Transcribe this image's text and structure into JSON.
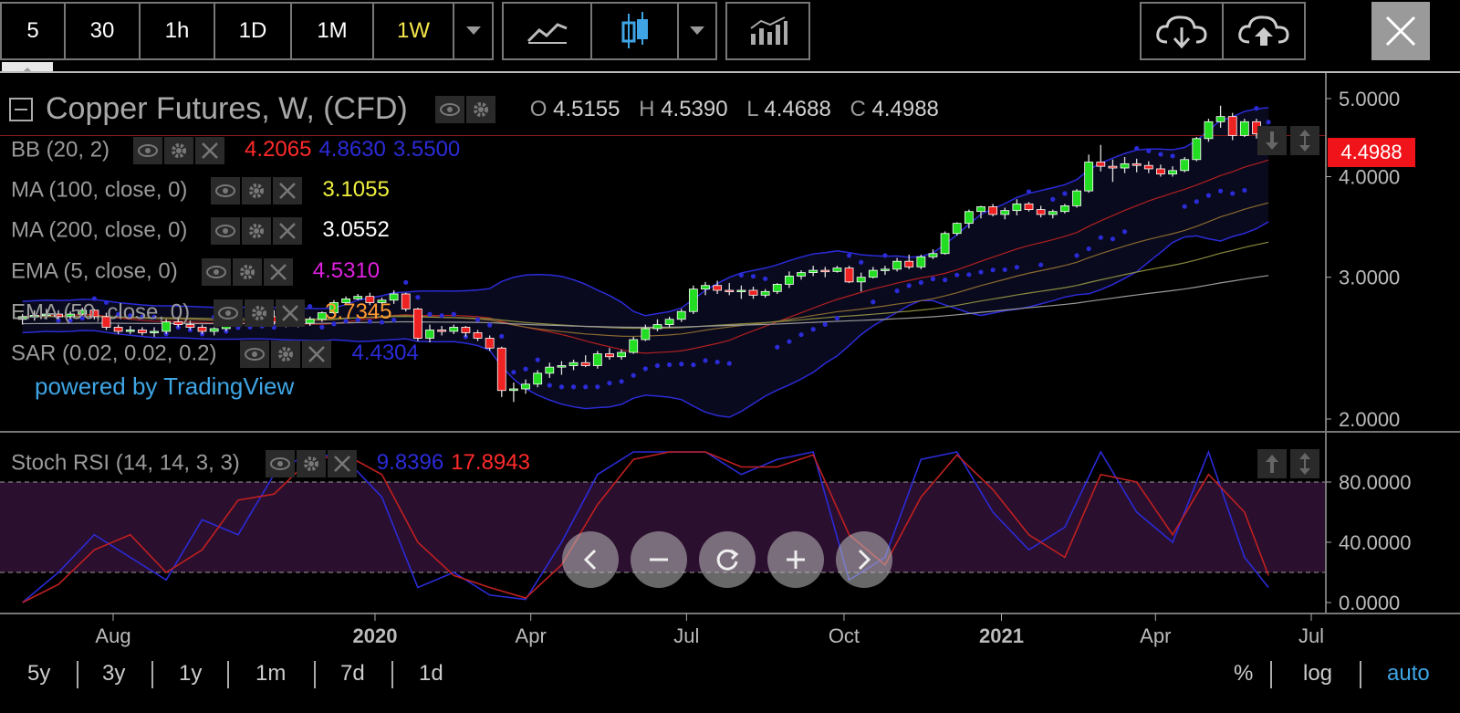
{
  "toolbar": {
    "intervals": [
      "5",
      "30",
      "1h",
      "1D",
      "1M",
      "1W"
    ],
    "active_interval": "1W",
    "active_color": "#f3e64a"
  },
  "header": {
    "symbol_title": "Copper Futures, W, (CFD)",
    "ohlc": {
      "o_label": "O",
      "o": "4.5155",
      "h_label": "H",
      "h": "4.5390",
      "l_label": "L",
      "l": "4.4688",
      "c_label": "C",
      "c": "4.4988"
    }
  },
  "indicators": [
    {
      "name": "BB (20, 2)",
      "values": [
        "4.2065",
        "4.8630",
        "3.5500"
      ],
      "colors": [
        "#ff2a2a",
        "#2b2bd8",
        "#2b2bd8"
      ]
    },
    {
      "name": "MA (100, close, 0)",
      "values": [
        "3.1055"
      ],
      "colors": [
        "#f0f040"
      ]
    },
    {
      "name": "MA (200, close, 0)",
      "values": [
        "3.0552"
      ],
      "colors": [
        "#ffffff"
      ]
    },
    {
      "name": "EMA (5, close, 0)",
      "values": [
        "4.5310"
      ],
      "colors": [
        "#e020e0"
      ]
    },
    {
      "name": "EMA (50, close, 0)",
      "values": [
        "3.7345"
      ],
      "colors": [
        "#ff9a30"
      ]
    },
    {
      "name": "SAR (0.02, 0.02, 0.2)",
      "values": [
        "4.4304"
      ],
      "colors": [
        "#2b2bd8"
      ]
    }
  ],
  "stoch": {
    "name": "Stoch RSI (14, 14, 3, 3)",
    "k": "9.8396",
    "d": "17.8943",
    "k_color": "#2b2bd8",
    "d_color": "#ff2a2a"
  },
  "branding": "powered by TradingView",
  "price_tag": "4.4988",
  "ranges": [
    "5y",
    "3y",
    "1y",
    "1m",
    "7d",
    "1d"
  ],
  "scales": [
    "%",
    "log",
    "auto"
  ],
  "active_scale": "auto",
  "icons": [
    "chevron-down-icon",
    "line-chart-icon",
    "candlestick-icon",
    "indicators-icon",
    "cloud-download-icon",
    "cloud-upload-icon",
    "close-icon",
    "eye-icon",
    "gear-icon",
    "remove-icon",
    "arrow-up-icon",
    "expand-vertical-icon",
    "chevron-left-icon",
    "zoom-out-icon",
    "reset-icon",
    "zoom-in-icon",
    "chevron-right-icon"
  ],
  "chart_data": [
    {
      "type": "candlestick",
      "title": "Copper Futures, W, (CFD)",
      "y_scale": "log",
      "y_ticks": [
        "5.0000",
        "4.0000",
        "3.0000",
        "2.0000"
      ],
      "ylim": [
        1.95,
        5.1
      ],
      "x_ticks": [
        "Aug",
        "2020",
        "Apr",
        "Jul",
        "Oct",
        "2021",
        "Apr",
        "Jul"
      ],
      "x_tick_dates": [
        "2019-08-01",
        "2020-01-01",
        "2020-04-01",
        "2020-07-01",
        "2020-10-01",
        "2021-01-01",
        "2021-04-01",
        "2021-07-01"
      ],
      "candles": [
        {
          "date": "2019-06-09",
          "o": 2.66,
          "h": 2.7,
          "l": 2.62,
          "c": 2.68
        },
        {
          "date": "2019-06-16",
          "o": 2.68,
          "h": 2.73,
          "l": 2.65,
          "c": 2.69
        },
        {
          "date": "2019-06-23",
          "o": 2.69,
          "h": 2.74,
          "l": 2.66,
          "c": 2.7
        },
        {
          "date": "2019-06-30",
          "o": 2.7,
          "h": 2.73,
          "l": 2.66,
          "c": 2.68
        },
        {
          "date": "2019-07-07",
          "o": 2.68,
          "h": 2.72,
          "l": 2.66,
          "c": 2.7
        },
        {
          "date": "2019-07-14",
          "o": 2.7,
          "h": 2.75,
          "l": 2.69,
          "c": 2.73
        },
        {
          "date": "2019-07-21",
          "o": 2.73,
          "h": 2.74,
          "l": 2.66,
          "c": 2.68
        },
        {
          "date": "2019-07-28",
          "o": 2.68,
          "h": 2.71,
          "l": 2.58,
          "c": 2.6
        },
        {
          "date": "2019-08-04",
          "o": 2.6,
          "h": 2.62,
          "l": 2.55,
          "c": 2.57
        },
        {
          "date": "2019-08-11",
          "o": 2.57,
          "h": 2.61,
          "l": 2.55,
          "c": 2.58
        },
        {
          "date": "2019-08-18",
          "o": 2.58,
          "h": 2.6,
          "l": 2.54,
          "c": 2.56
        },
        {
          "date": "2019-08-25",
          "o": 2.56,
          "h": 2.6,
          "l": 2.53,
          "c": 2.57
        },
        {
          "date": "2019-09-01",
          "o": 2.57,
          "h": 2.66,
          "l": 2.55,
          "c": 2.64
        },
        {
          "date": "2019-09-08",
          "o": 2.64,
          "h": 2.68,
          "l": 2.6,
          "c": 2.62
        },
        {
          "date": "2019-09-15",
          "o": 2.62,
          "h": 2.65,
          "l": 2.58,
          "c": 2.6
        },
        {
          "date": "2019-09-22",
          "o": 2.6,
          "h": 2.62,
          "l": 2.55,
          "c": 2.57
        },
        {
          "date": "2019-09-29",
          "o": 2.57,
          "h": 2.6,
          "l": 2.54,
          "c": 2.59
        },
        {
          "date": "2019-10-06",
          "o": 2.59,
          "h": 2.66,
          "l": 2.57,
          "c": 2.64
        },
        {
          "date": "2019-10-13",
          "o": 2.64,
          "h": 2.66,
          "l": 2.61,
          "c": 2.63
        },
        {
          "date": "2019-10-20",
          "o": 2.63,
          "h": 2.68,
          "l": 2.62,
          "c": 2.66
        },
        {
          "date": "2019-10-27",
          "o": 2.66,
          "h": 2.7,
          "l": 2.64,
          "c": 2.68
        },
        {
          "date": "2019-11-03",
          "o": 2.68,
          "h": 2.73,
          "l": 2.62,
          "c": 2.64
        },
        {
          "date": "2019-11-10",
          "o": 2.64,
          "h": 2.66,
          "l": 2.6,
          "c": 2.62
        },
        {
          "date": "2019-11-17",
          "o": 2.62,
          "h": 2.66,
          "l": 2.6,
          "c": 2.63
        },
        {
          "date": "2019-11-24",
          "o": 2.63,
          "h": 2.68,
          "l": 2.61,
          "c": 2.66
        },
        {
          "date": "2019-12-01",
          "o": 2.66,
          "h": 2.72,
          "l": 2.64,
          "c": 2.71
        },
        {
          "date": "2019-12-08",
          "o": 2.71,
          "h": 2.81,
          "l": 2.7,
          "c": 2.79
        },
        {
          "date": "2019-12-15",
          "o": 2.79,
          "h": 2.84,
          "l": 2.77,
          "c": 2.82
        },
        {
          "date": "2019-12-22",
          "o": 2.82,
          "h": 2.86,
          "l": 2.81,
          "c": 2.84
        },
        {
          "date": "2019-12-29",
          "o": 2.84,
          "h": 2.87,
          "l": 2.77,
          "c": 2.79
        },
        {
          "date": "2020-01-05",
          "o": 2.79,
          "h": 2.83,
          "l": 2.74,
          "c": 2.81
        },
        {
          "date": "2020-01-12",
          "o": 2.81,
          "h": 2.89,
          "l": 2.78,
          "c": 2.86
        },
        {
          "date": "2020-01-19",
          "o": 2.86,
          "h": 2.87,
          "l": 2.72,
          "c": 2.74
        },
        {
          "date": "2020-01-26",
          "o": 2.74,
          "h": 2.75,
          "l": 2.5,
          "c": 2.52
        },
        {
          "date": "2020-02-02",
          "o": 2.52,
          "h": 2.62,
          "l": 2.49,
          "c": 2.58
        },
        {
          "date": "2020-02-09",
          "o": 2.58,
          "h": 2.61,
          "l": 2.54,
          "c": 2.57
        },
        {
          "date": "2020-02-16",
          "o": 2.57,
          "h": 2.62,
          "l": 2.55,
          "c": 2.6
        },
        {
          "date": "2020-02-23",
          "o": 2.6,
          "h": 2.61,
          "l": 2.53,
          "c": 2.56
        },
        {
          "date": "2020-03-01",
          "o": 2.56,
          "h": 2.58,
          "l": 2.5,
          "c": 2.52
        },
        {
          "date": "2020-03-08",
          "o": 2.52,
          "h": 2.54,
          "l": 2.43,
          "c": 2.45
        },
        {
          "date": "2020-03-15",
          "o": 2.45,
          "h": 2.46,
          "l": 2.13,
          "c": 2.17
        },
        {
          "date": "2020-03-22",
          "o": 2.17,
          "h": 2.22,
          "l": 2.1,
          "c": 2.18
        },
        {
          "date": "2020-03-29",
          "o": 2.18,
          "h": 2.24,
          "l": 2.15,
          "c": 2.21
        },
        {
          "date": "2020-04-05",
          "o": 2.21,
          "h": 2.3,
          "l": 2.19,
          "c": 2.28
        },
        {
          "date": "2020-04-12",
          "o": 2.28,
          "h": 2.35,
          "l": 2.25,
          "c": 2.32
        },
        {
          "date": "2020-04-19",
          "o": 2.32,
          "h": 2.36,
          "l": 2.27,
          "c": 2.33
        },
        {
          "date": "2020-04-26",
          "o": 2.33,
          "h": 2.37,
          "l": 2.3,
          "c": 2.35
        },
        {
          "date": "2020-05-03",
          "o": 2.35,
          "h": 2.4,
          "l": 2.32,
          "c": 2.33
        },
        {
          "date": "2020-05-10",
          "o": 2.33,
          "h": 2.43,
          "l": 2.31,
          "c": 2.41
        },
        {
          "date": "2020-05-17",
          "o": 2.41,
          "h": 2.45,
          "l": 2.37,
          "c": 2.39
        },
        {
          "date": "2020-05-24",
          "o": 2.39,
          "h": 2.44,
          "l": 2.37,
          "c": 2.42
        },
        {
          "date": "2020-05-31",
          "o": 2.42,
          "h": 2.53,
          "l": 2.41,
          "c": 2.51
        },
        {
          "date": "2020-06-07",
          "o": 2.51,
          "h": 2.62,
          "l": 2.5,
          "c": 2.59
        },
        {
          "date": "2020-06-14",
          "o": 2.59,
          "h": 2.66,
          "l": 2.57,
          "c": 2.62
        },
        {
          "date": "2020-06-21",
          "o": 2.62,
          "h": 2.68,
          "l": 2.6,
          "c": 2.66
        },
        {
          "date": "2020-06-28",
          "o": 2.66,
          "h": 2.74,
          "l": 2.64,
          "c": 2.72
        },
        {
          "date": "2020-07-05",
          "o": 2.72,
          "h": 2.93,
          "l": 2.7,
          "c": 2.9
        },
        {
          "date": "2020-07-12",
          "o": 2.9,
          "h": 2.96,
          "l": 2.85,
          "c": 2.93
        },
        {
          "date": "2020-07-19",
          "o": 2.93,
          "h": 2.97,
          "l": 2.86,
          "c": 2.89
        },
        {
          "date": "2020-07-26",
          "o": 2.89,
          "h": 2.95,
          "l": 2.85,
          "c": 2.88
        },
        {
          "date": "2020-08-02",
          "o": 2.88,
          "h": 2.93,
          "l": 2.82,
          "c": 2.89
        },
        {
          "date": "2020-08-09",
          "o": 2.89,
          "h": 2.92,
          "l": 2.82,
          "c": 2.85
        },
        {
          "date": "2020-08-16",
          "o": 2.85,
          "h": 2.9,
          "l": 2.83,
          "c": 2.88
        },
        {
          "date": "2020-08-23",
          "o": 2.88,
          "h": 2.95,
          "l": 2.86,
          "c": 2.94
        },
        {
          "date": "2020-08-30",
          "o": 2.94,
          "h": 3.05,
          "l": 2.91,
          "c": 3.01
        },
        {
          "date": "2020-09-06",
          "o": 3.01,
          "h": 3.06,
          "l": 2.98,
          "c": 3.04
        },
        {
          "date": "2020-09-13",
          "o": 3.04,
          "h": 3.1,
          "l": 3.01,
          "c": 3.06
        },
        {
          "date": "2020-09-20",
          "o": 3.06,
          "h": 3.09,
          "l": 3.0,
          "c": 3.05
        },
        {
          "date": "2020-09-27",
          "o": 3.05,
          "h": 3.1,
          "l": 3.04,
          "c": 3.08
        },
        {
          "date": "2020-10-04",
          "o": 3.08,
          "h": 3.1,
          "l": 2.95,
          "c": 2.96
        },
        {
          "date": "2020-10-11",
          "o": 2.96,
          "h": 3.04,
          "l": 2.88,
          "c": 3.0
        },
        {
          "date": "2020-10-18",
          "o": 3.0,
          "h": 3.09,
          "l": 2.99,
          "c": 3.06
        },
        {
          "date": "2020-10-25",
          "o": 3.06,
          "h": 3.1,
          "l": 3.02,
          "c": 3.07
        },
        {
          "date": "2020-11-01",
          "o": 3.07,
          "h": 3.17,
          "l": 3.05,
          "c": 3.14
        },
        {
          "date": "2020-11-08",
          "o": 3.14,
          "h": 3.2,
          "l": 3.07,
          "c": 3.09
        },
        {
          "date": "2020-11-15",
          "o": 3.09,
          "h": 3.2,
          "l": 3.07,
          "c": 3.18
        },
        {
          "date": "2020-11-22",
          "o": 3.18,
          "h": 3.25,
          "l": 3.16,
          "c": 3.21
        },
        {
          "date": "2020-11-29",
          "o": 3.21,
          "h": 3.42,
          "l": 3.2,
          "c": 3.4
        },
        {
          "date": "2020-12-06",
          "o": 3.4,
          "h": 3.51,
          "l": 3.38,
          "c": 3.5
        },
        {
          "date": "2020-12-13",
          "o": 3.5,
          "h": 3.64,
          "l": 3.45,
          "c": 3.62
        },
        {
          "date": "2020-12-20",
          "o": 3.62,
          "h": 3.68,
          "l": 3.55,
          "c": 3.67
        },
        {
          "date": "2020-12-27",
          "o": 3.67,
          "h": 3.7,
          "l": 3.57,
          "c": 3.59
        },
        {
          "date": "2021-01-03",
          "o": 3.59,
          "h": 3.66,
          "l": 3.54,
          "c": 3.63
        },
        {
          "date": "2021-01-10",
          "o": 3.63,
          "h": 3.75,
          "l": 3.58,
          "c": 3.7
        },
        {
          "date": "2021-01-17",
          "o": 3.7,
          "h": 3.72,
          "l": 3.62,
          "c": 3.64
        },
        {
          "date": "2021-01-24",
          "o": 3.64,
          "h": 3.68,
          "l": 3.56,
          "c": 3.59
        },
        {
          "date": "2021-01-31",
          "o": 3.59,
          "h": 3.64,
          "l": 3.55,
          "c": 3.62
        },
        {
          "date": "2021-02-07",
          "o": 3.62,
          "h": 3.7,
          "l": 3.6,
          "c": 3.68
        },
        {
          "date": "2021-02-14",
          "o": 3.68,
          "h": 3.86,
          "l": 3.66,
          "c": 3.84
        },
        {
          "date": "2021-02-21",
          "o": 3.84,
          "h": 4.26,
          "l": 3.82,
          "c": 4.17
        },
        {
          "date": "2021-02-28",
          "o": 4.17,
          "h": 4.38,
          "l": 4.06,
          "c": 4.12
        },
        {
          "date": "2021-03-07",
          "o": 4.12,
          "h": 4.2,
          "l": 3.94,
          "c": 4.1
        },
        {
          "date": "2021-03-14",
          "o": 4.1,
          "h": 4.23,
          "l": 4.04,
          "c": 4.15
        },
        {
          "date": "2021-03-21",
          "o": 4.15,
          "h": 4.21,
          "l": 4.05,
          "c": 4.13
        },
        {
          "date": "2021-03-28",
          "o": 4.13,
          "h": 4.18,
          "l": 4.04,
          "c": 4.09
        },
        {
          "date": "2021-04-04",
          "o": 4.09,
          "h": 4.14,
          "l": 4.0,
          "c": 4.03
        },
        {
          "date": "2021-04-11",
          "o": 4.03,
          "h": 4.12,
          "l": 4.0,
          "c": 4.07
        },
        {
          "date": "2021-04-18",
          "o": 4.07,
          "h": 4.23,
          "l": 4.05,
          "c": 4.2
        },
        {
          "date": "2021-04-25",
          "o": 4.2,
          "h": 4.48,
          "l": 4.18,
          "c": 4.46
        },
        {
          "date": "2021-05-02",
          "o": 4.46,
          "h": 4.72,
          "l": 4.42,
          "c": 4.68
        },
        {
          "date": "2021-05-09",
          "o": 4.68,
          "h": 4.9,
          "l": 4.6,
          "c": 4.75
        },
        {
          "date": "2021-05-16",
          "o": 4.75,
          "h": 4.8,
          "l": 4.44,
          "c": 4.5
        },
        {
          "date": "2021-05-23",
          "o": 4.5,
          "h": 4.72,
          "l": 4.48,
          "c": 4.68
        },
        {
          "date": "2021-05-30",
          "o": 4.68,
          "h": 4.72,
          "l": 4.46,
          "c": 4.52
        },
        {
          "date": "2021-06-06",
          "o": 4.5155,
          "h": 4.539,
          "l": 4.4688,
          "c": 4.4988
        }
      ]
    },
    {
      "type": "line",
      "title": "Stoch RSI (14, 14, 3, 3)",
      "y_ticks": [
        "80.0000",
        "40.0000",
        "0.0000"
      ],
      "ylim": [
        -5,
        108
      ],
      "band": [
        20,
        80
      ],
      "dates": [
        "2019-06-09",
        "2019-06-30",
        "2019-07-21",
        "2019-08-11",
        "2019-09-01",
        "2019-09-22",
        "2019-10-13",
        "2019-11-03",
        "2019-11-24",
        "2019-12-15",
        "2020-01-05",
        "2020-01-26",
        "2020-02-16",
        "2020-03-08",
        "2020-03-29",
        "2020-04-19",
        "2020-05-10",
        "2020-05-31",
        "2020-06-21",
        "2020-07-12",
        "2020-08-02",
        "2020-08-23",
        "2020-09-13",
        "2020-10-04",
        "2020-10-25",
        "2020-11-15",
        "2020-12-06",
        "2020-12-27",
        "2021-01-17",
        "2021-02-07",
        "2021-02-28",
        "2021-03-21",
        "2021-04-11",
        "2021-05-02",
        "2021-05-23",
        "2021-06-06"
      ],
      "series": [
        {
          "name": "K",
          "values": [
            0,
            20,
            45,
            30,
            15,
            55,
            45,
            85,
            100,
            95,
            70,
            10,
            20,
            5,
            2,
            40,
            85,
            100,
            100,
            100,
            85,
            95,
            100,
            15,
            30,
            95,
            100,
            60,
            35,
            50,
            100,
            60,
            40,
            100,
            30,
            10
          ]
        },
        {
          "name": "D",
          "values": [
            0,
            12,
            35,
            45,
            20,
            35,
            68,
            72,
            95,
            98,
            85,
            40,
            18,
            10,
            3,
            25,
            65,
            95,
            100,
            100,
            90,
            90,
            98,
            45,
            25,
            70,
            98,
            75,
            45,
            30,
            85,
            80,
            45,
            85,
            60,
            18
          ]
        }
      ]
    }
  ]
}
